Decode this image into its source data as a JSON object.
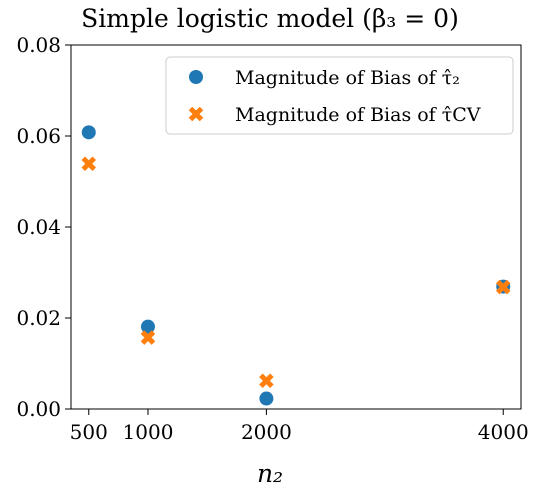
{
  "chart_data": {
    "type": "scatter",
    "title": "Simple logistic model (β₃ = 0)",
    "xlabel": "n₂",
    "ylabel": "",
    "x_ticks": [
      500,
      1000,
      2000,
      4000
    ],
    "y_ticks": [
      "0.00",
      "0.02",
      "0.04",
      "0.06",
      "0.08"
    ],
    "xlim": [
      350,
      4150
    ],
    "ylim": [
      0,
      0.08
    ],
    "grid": false,
    "legend_position": "top-right",
    "series": [
      {
        "name": "Magnitude of Bias of τ̂₂",
        "marker": "circle",
        "color": "#1f77b4",
        "points": [
          {
            "x": 500,
            "y": 0.0608
          },
          {
            "x": 1000,
            "y": 0.0181
          },
          {
            "x": 2000,
            "y": 0.0023
          },
          {
            "x": 4000,
            "y": 0.0269
          }
        ]
      },
      {
        "name": "Magnitude of Bias of τ̂CV",
        "marker": "x",
        "color": "#ff7f0e",
        "points": [
          {
            "x": 500,
            "y": 0.0539
          },
          {
            "x": 1000,
            "y": 0.0157
          },
          {
            "x": 2000,
            "y": 0.0062
          },
          {
            "x": 4000,
            "y": 0.0268
          }
        ]
      }
    ]
  }
}
